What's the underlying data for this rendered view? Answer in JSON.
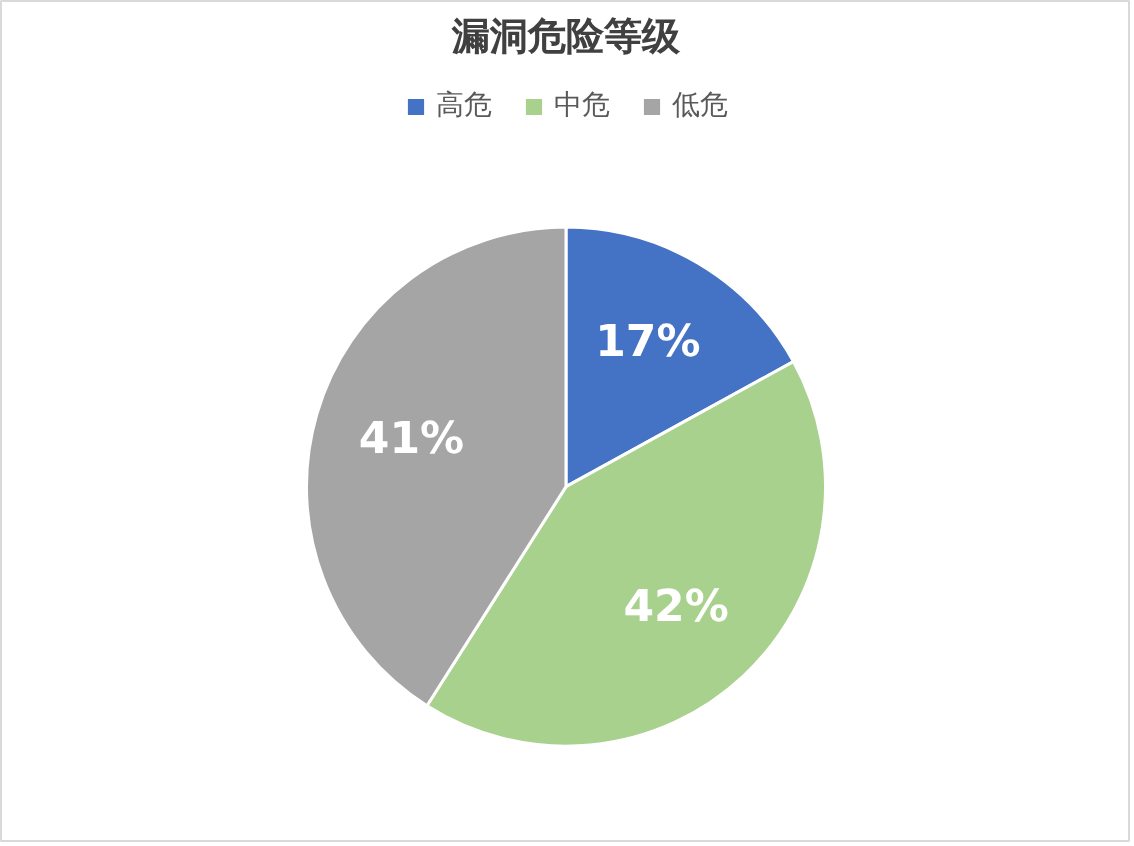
{
  "chart_data": {
    "type": "pie",
    "title": "漏洞危险等级",
    "categories": [
      "高危",
      "中危",
      "低危"
    ],
    "values": [
      17,
      42,
      41
    ],
    "colors": [
      "#4472c4",
      "#a9d18e",
      "#a5a5a5"
    ],
    "legend": "top",
    "value_labels": [
      "17%",
      "42%",
      "41%"
    ]
  }
}
